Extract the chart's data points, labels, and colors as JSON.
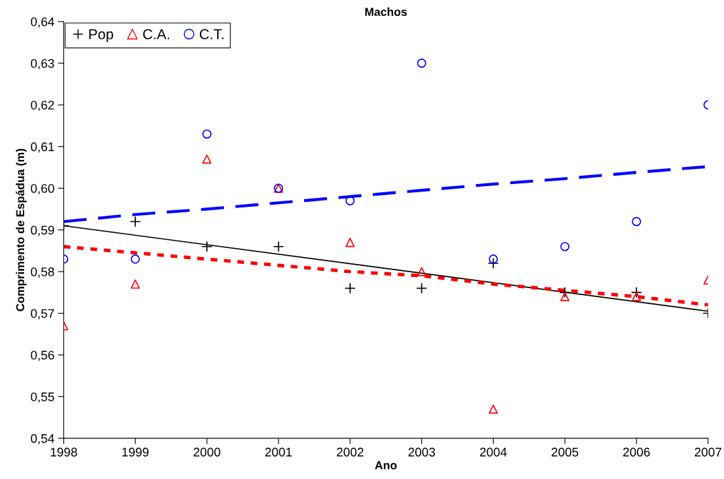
{
  "chart_data": {
    "type": "scatter",
    "title": "Machos",
    "xlabel": "Ano",
    "ylabel": "Comprimento de Espádua (m)",
    "x": [
      1998,
      1999,
      2000,
      2001,
      2002,
      2003,
      2004,
      2005,
      2006,
      2007
    ],
    "xlim": [
      1998,
      2007
    ],
    "xticks": [
      1998,
      1999,
      2000,
      2001,
      2002,
      2003,
      2004,
      2005,
      2006,
      2007
    ],
    "ylim": [
      0.54,
      0.64
    ],
    "yticks": [
      {
        "value": 0.54,
        "label": "0,54"
      },
      {
        "value": 0.55,
        "label": "0,55"
      },
      {
        "value": 0.56,
        "label": "0,56"
      },
      {
        "value": 0.57,
        "label": "0,57"
      },
      {
        "value": 0.58,
        "label": "0,58"
      },
      {
        "value": 0.59,
        "label": "0,59"
      },
      {
        "value": 0.6,
        "label": "0,60"
      },
      {
        "value": 0.61,
        "label": "0,61"
      },
      {
        "value": 0.62,
        "label": "0,62"
      },
      {
        "value": 0.63,
        "label": "0,63"
      },
      {
        "value": 0.64,
        "label": "0,64"
      }
    ],
    "grid": false,
    "legend": "top left",
    "series": [
      {
        "name": "Pop",
        "color": "#000000",
        "marker": "cross",
        "values": [
          0.591,
          0.592,
          0.586,
          0.586,
          0.576,
          0.576,
          0.582,
          0.575,
          0.575,
          0.57
        ]
      },
      {
        "name": "C.A.",
        "color": "#ff0000",
        "marker": "triangle",
        "values": [
          0.567,
          0.577,
          0.607,
          0.6,
          0.587,
          0.58,
          0.547,
          0.574,
          0.574,
          0.578
        ]
      },
      {
        "name": "C.T.",
        "color": "#0000ff",
        "marker": "circle",
        "values": [
          0.583,
          0.583,
          0.613,
          0.6,
          0.597,
          0.63,
          0.583,
          0.586,
          0.592,
          0.62
        ]
      },
      {
        "type": "line",
        "color": "#000000",
        "line_style": "solid",
        "x": [
          1998,
          2007
        ],
        "values": [
          0.591,
          0.5705
        ]
      },
      {
        "type": "line",
        "color": "#ff0000",
        "line_style": "dotted",
        "x": [
          1998,
          1999,
          2000,
          2001,
          2002,
          2003,
          2004,
          2005,
          2006,
          2007
        ],
        "values": [
          0.586,
          0.5845,
          0.583,
          0.5815,
          0.58,
          0.579,
          0.577,
          0.5755,
          0.574,
          0.572
        ]
      },
      {
        "type": "line",
        "color": "#0000ff",
        "line_style": "dashed",
        "x": [
          1998,
          1999,
          2000,
          2001,
          2002,
          2003,
          2004,
          2005,
          2006,
          2007
        ],
        "values": [
          0.592,
          0.5937,
          0.595,
          0.5965,
          0.598,
          0.5995,
          0.601,
          0.6023,
          0.6038,
          0.6052
        ]
      }
    ]
  }
}
